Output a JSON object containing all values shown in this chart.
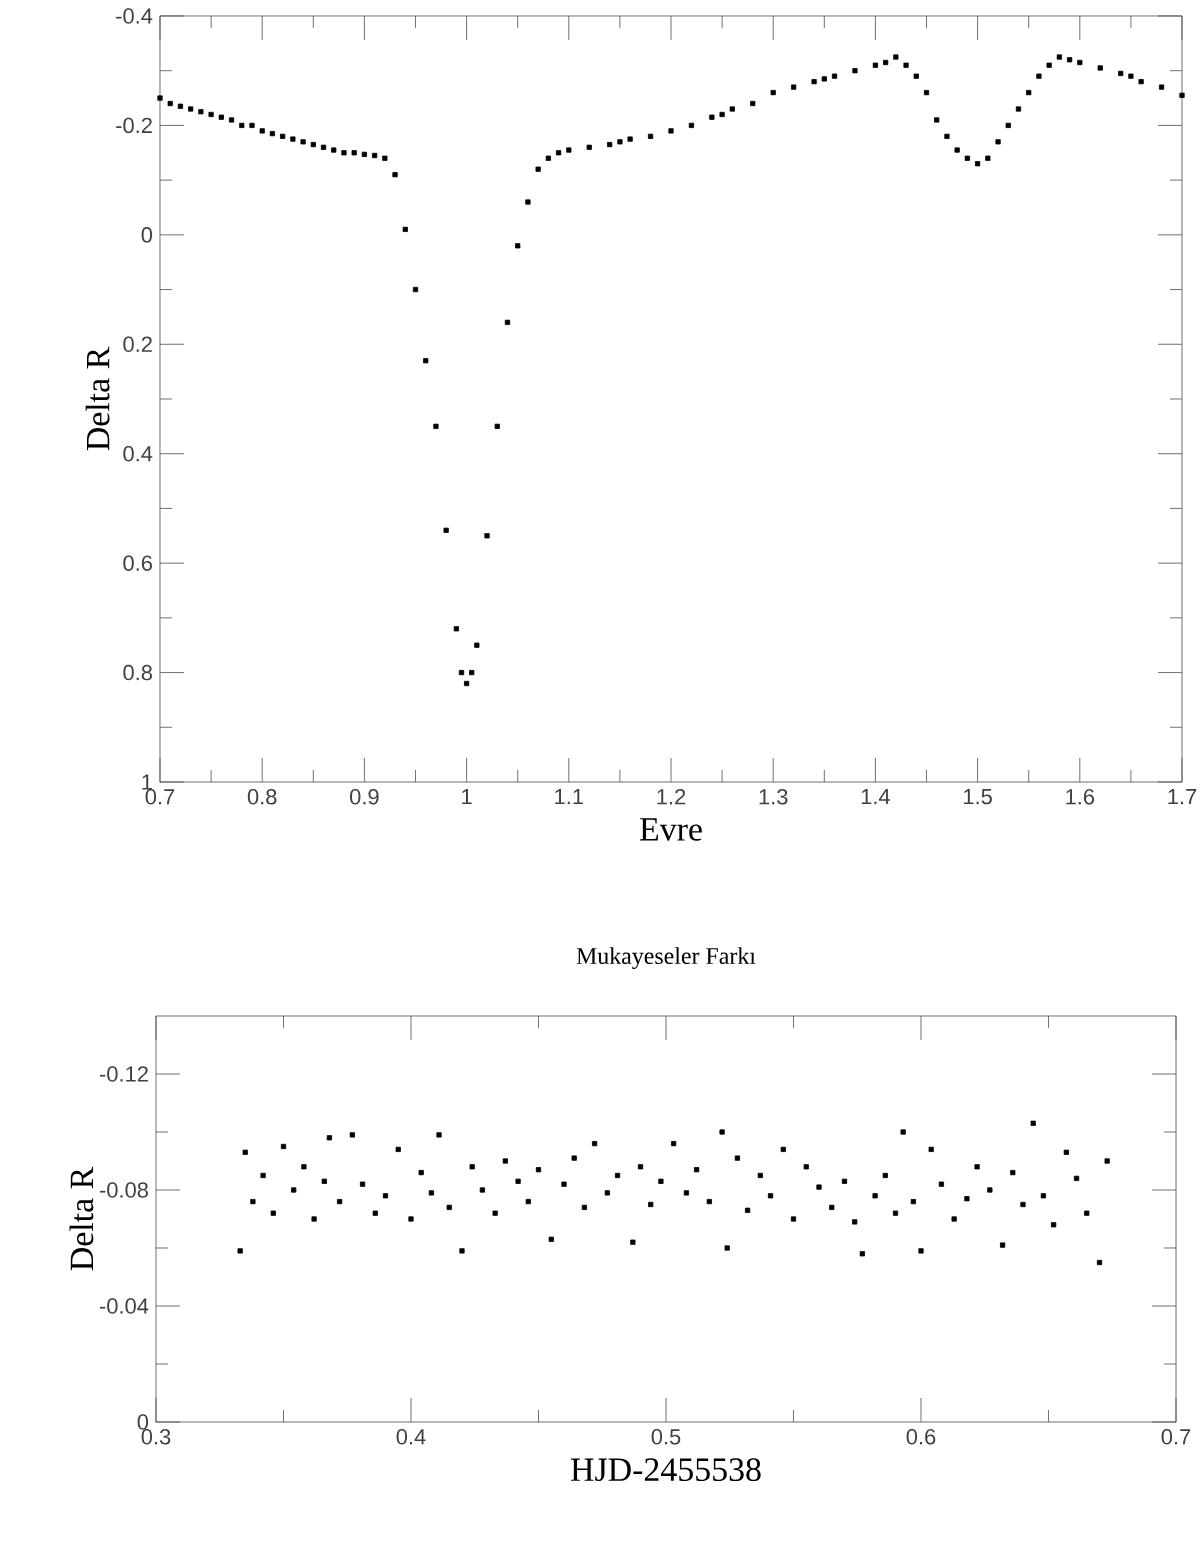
{
  "chart_data": [
    {
      "type": "scatter",
      "xlabel": "Evre",
      "ylabel": "Delta R",
      "marker": "square",
      "xlim": [
        0.7,
        1.7
      ],
      "ylim": [
        1,
        -0.4
      ],
      "xticks": [
        0.7,
        0.8,
        0.9,
        1,
        1.1,
        1.2,
        1.3,
        1.4,
        1.5,
        1.6,
        1.7
      ],
      "yticks": [
        -0.4,
        -0.2,
        0,
        0.2,
        0.4,
        0.6,
        0.8,
        1
      ],
      "series": [
        {
          "color": "#000000",
          "x": [
            0.7,
            0.71,
            0.72,
            0.73,
            0.74,
            0.75,
            0.76,
            0.77,
            0.78,
            0.79,
            0.8,
            0.81,
            0.82,
            0.83,
            0.84,
            0.85,
            0.86,
            0.87,
            0.88,
            0.89,
            0.9,
            0.91,
            0.92,
            0.93,
            0.94,
            0.95,
            0.96,
            0.97,
            0.98,
            0.99,
            0.995,
            1.0,
            1.005,
            1.01,
            1.02,
            1.03,
            1.04,
            1.05,
            1.06,
            1.07,
            1.08,
            1.09,
            1.1,
            1.12,
            1.14,
            1.15,
            1.16,
            1.18,
            1.2,
            1.22,
            1.24,
            1.25,
            1.26,
            1.28,
            1.3,
            1.32,
            1.34,
            1.35,
            1.36,
            1.38,
            1.4,
            1.41,
            1.42,
            1.43,
            1.44,
            1.45,
            1.46,
            1.47,
            1.48,
            1.49,
            1.5,
            1.51,
            1.52,
            1.53,
            1.54,
            1.55,
            1.56,
            1.57,
            1.58,
            1.59,
            1.6,
            1.62,
            1.64,
            1.65,
            1.66,
            1.68,
            1.7
          ],
          "values": [
            -0.25,
            -0.24,
            -0.235,
            -0.23,
            -0.225,
            -0.22,
            -0.215,
            -0.21,
            -0.2,
            -0.2,
            -0.19,
            -0.185,
            -0.18,
            -0.175,
            -0.17,
            -0.165,
            -0.16,
            -0.155,
            -0.15,
            -0.15,
            -0.147,
            -0.145,
            -0.14,
            -0.11,
            -0.01,
            0.1,
            0.23,
            0.35,
            0.54,
            0.72,
            0.8,
            0.82,
            0.8,
            0.75,
            0.55,
            0.35,
            0.16,
            0.02,
            -0.06,
            -0.12,
            -0.14,
            -0.15,
            -0.155,
            -0.16,
            -0.165,
            -0.17,
            -0.175,
            -0.18,
            -0.19,
            -0.2,
            -0.215,
            -0.22,
            -0.23,
            -0.24,
            -0.26,
            -0.27,
            -0.28,
            -0.285,
            -0.29,
            -0.3,
            -0.31,
            -0.315,
            -0.325,
            -0.31,
            -0.29,
            -0.26,
            -0.21,
            -0.18,
            -0.155,
            -0.14,
            -0.13,
            -0.14,
            -0.17,
            -0.2,
            -0.23,
            -0.26,
            -0.29,
            -0.31,
            -0.325,
            -0.32,
            -0.315,
            -0.305,
            -0.295,
            -0.29,
            -0.28,
            -0.27,
            -0.255
          ]
        }
      ]
    },
    {
      "type": "scatter",
      "title": "Mukayeseler Farkı",
      "xlabel": "HJD-2455538",
      "ylabel": "Delta R",
      "marker": "square",
      "xlim": [
        0.3,
        0.7
      ],
      "ylim": [
        0,
        -0.14
      ],
      "xticks": [
        0.3,
        0.4,
        0.5,
        0.6,
        0.7
      ],
      "yticks": [
        -0.12,
        -0.08,
        -0.04,
        0
      ],
      "series": [
        {
          "color": "#000000",
          "x": [
            0.333,
            0.335,
            0.338,
            0.342,
            0.346,
            0.35,
            0.354,
            0.358,
            0.362,
            0.366,
            0.368,
            0.372,
            0.377,
            0.381,
            0.386,
            0.39,
            0.395,
            0.4,
            0.404,
            0.408,
            0.411,
            0.415,
            0.42,
            0.424,
            0.428,
            0.433,
            0.437,
            0.442,
            0.446,
            0.45,
            0.455,
            0.46,
            0.464,
            0.468,
            0.472,
            0.477,
            0.481,
            0.487,
            0.49,
            0.494,
            0.498,
            0.503,
            0.508,
            0.512,
            0.517,
            0.522,
            0.524,
            0.528,
            0.532,
            0.537,
            0.541,
            0.546,
            0.55,
            0.555,
            0.56,
            0.565,
            0.57,
            0.574,
            0.577,
            0.582,
            0.586,
            0.59,
            0.593,
            0.597,
            0.6,
            0.604,
            0.608,
            0.613,
            0.618,
            0.622,
            0.627,
            0.632,
            0.636,
            0.64,
            0.644,
            0.648,
            0.652,
            0.657,
            0.661,
            0.665,
            0.67,
            0.673
          ],
          "values": [
            -0.059,
            -0.093,
            -0.076,
            -0.085,
            -0.072,
            -0.095,
            -0.08,
            -0.088,
            -0.07,
            -0.083,
            -0.098,
            -0.076,
            -0.099,
            -0.082,
            -0.072,
            -0.078,
            -0.094,
            -0.07,
            -0.086,
            -0.079,
            -0.099,
            -0.074,
            -0.059,
            -0.088,
            -0.08,
            -0.072,
            -0.09,
            -0.083,
            -0.076,
            -0.087,
            -0.063,
            -0.082,
            -0.091,
            -0.074,
            -0.096,
            -0.079,
            -0.085,
            -0.062,
            -0.088,
            -0.075,
            -0.083,
            -0.096,
            -0.079,
            -0.087,
            -0.076,
            -0.1,
            -0.06,
            -0.091,
            -0.073,
            -0.085,
            -0.078,
            -0.094,
            -0.07,
            -0.088,
            -0.081,
            -0.074,
            -0.083,
            -0.069,
            -0.058,
            -0.078,
            -0.085,
            -0.072,
            -0.1,
            -0.076,
            -0.059,
            -0.094,
            -0.082,
            -0.07,
            -0.077,
            -0.088,
            -0.08,
            -0.061,
            -0.086,
            -0.075,
            -0.103,
            -0.078,
            -0.068,
            -0.093,
            -0.084,
            -0.072,
            -0.055,
            -0.09
          ]
        }
      ]
    }
  ]
}
